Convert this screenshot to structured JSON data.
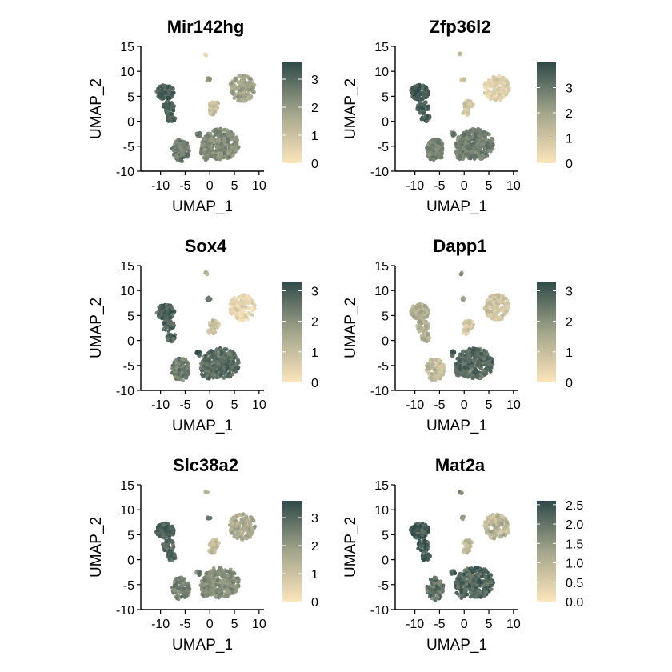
{
  "chart_data": [
    {
      "type": "scatter",
      "title": "Mir142hg",
      "xlabel": "UMAP_1",
      "ylabel": "UMAP_2",
      "xlim": [
        -14,
        11
      ],
      "ylim": [
        -10,
        15
      ],
      "xticks": [
        "-10",
        "-5",
        "0",
        "5",
        "10"
      ],
      "yticks": [
        "-10",
        "-5",
        "0",
        "5",
        "10",
        "15"
      ],
      "colorbar": {
        "min": 0,
        "max": 3.6,
        "ticks": [
          "0",
          "1",
          "2",
          "3"
        ]
      },
      "cluster_expression": {
        "A": 3.2,
        "B": 2.6,
        "C": 2.3,
        "D": 1.1,
        "E": 0.3,
        "F": 1.8,
        "G": 2.4,
        "H": 2.8
      }
    },
    {
      "type": "scatter",
      "title": "Zfp36l2",
      "xlabel": "UMAP_1",
      "ylabel": "UMAP_2",
      "xlim": [
        -14,
        11
      ],
      "ylim": [
        -10,
        15
      ],
      "xticks": [
        "-10",
        "-5",
        "0",
        "5",
        "10"
      ],
      "yticks": [
        "-10",
        "-5",
        "0",
        "5",
        "10",
        "15"
      ],
      "colorbar": {
        "min": 0,
        "max": 4.0,
        "ticks": [
          "0",
          "1",
          "2",
          "3"
        ]
      },
      "cluster_expression": {
        "A": 3.6,
        "B": 2.7,
        "C": 2.9,
        "D": 1.0,
        "E": 1.3,
        "F": 0.6,
        "G": 1.0,
        "H": 3.0
      }
    },
    {
      "type": "scatter",
      "title": "Sox4",
      "xlabel": "UMAP_1",
      "ylabel": "UMAP_2",
      "xlim": [
        -14,
        11
      ],
      "ylim": [
        -10,
        15
      ],
      "xticks": [
        "-10",
        "-5",
        "0",
        "5",
        "10"
      ],
      "yticks": [
        "-10",
        "-5",
        "0",
        "5",
        "10",
        "15"
      ],
      "colorbar": {
        "min": 0,
        "max": 3.3,
        "ticks": [
          "0",
          "1",
          "2",
          "3"
        ]
      },
      "cluster_expression": {
        "A": 2.9,
        "B": 2.4,
        "C": 2.7,
        "D": 1.0,
        "E": 1.3,
        "F": 0.4,
        "G": 2.4,
        "H": 2.9
      }
    },
    {
      "type": "scatter",
      "title": "Dapp1",
      "xlabel": "UMAP_1",
      "ylabel": "UMAP_2",
      "xlim": [
        -14,
        11
      ],
      "ylim": [
        -10,
        15
      ],
      "xticks": [
        "-10",
        "-5",
        "0",
        "5",
        "10"
      ],
      "yticks": [
        "-10",
        "-5",
        "0",
        "5",
        "10",
        "15"
      ],
      "colorbar": {
        "min": 0,
        "max": 3.3,
        "ticks": [
          "0",
          "1",
          "2",
          "3"
        ]
      },
      "cluster_expression": {
        "A": 1.4,
        "B": 1.1,
        "C": 2.7,
        "D": 0.7,
        "E": 1.9,
        "F": 0.9,
        "G": 1.6,
        "H": 2.9
      }
    },
    {
      "type": "scatter",
      "title": "Slc38a2",
      "xlabel": "UMAP_1",
      "ylabel": "UMAP_2",
      "xlim": [
        -14,
        11
      ],
      "ylim": [
        -10,
        15
      ],
      "xticks": [
        "-10",
        "-5",
        "0",
        "5",
        "10"
      ],
      "yticks": [
        "-10",
        "-5",
        "0",
        "5",
        "10",
        "15"
      ],
      "colorbar": {
        "min": 0,
        "max": 3.6,
        "ticks": [
          "0",
          "1",
          "2",
          "3"
        ]
      },
      "cluster_expression": {
        "A": 3.1,
        "B": 2.5,
        "C": 2.3,
        "D": 1.2,
        "E": 1.5,
        "F": 1.7,
        "G": 2.5,
        "H": 2.6
      }
    },
    {
      "type": "scatter",
      "title": "Mat2a",
      "xlabel": "UMAP_1",
      "ylabel": "UMAP_2",
      "xlim": [
        -14,
        11
      ],
      "ylim": [
        -10,
        15
      ],
      "xticks": [
        "-10",
        "-5",
        "0",
        "5",
        "10"
      ],
      "yticks": [
        "-10",
        "-5",
        "0",
        "5",
        "10",
        "15"
      ],
      "colorbar": {
        "min": 0,
        "max": 2.6,
        "ticks": [
          "0.0",
          "0.5",
          "1.0",
          "1.5",
          "2.0",
          "2.5"
        ]
      },
      "cluster_expression": {
        "A": 2.4,
        "B": 2.0,
        "C": 2.2,
        "D": 0.9,
        "E": 1.5,
        "F": 1.0,
        "G": 1.6,
        "H": 2.4
      }
    }
  ],
  "colors": {
    "low": "#fce5bb",
    "mid": "#a3a58b",
    "high": "#2f4a49",
    "axis": "#000000"
  }
}
